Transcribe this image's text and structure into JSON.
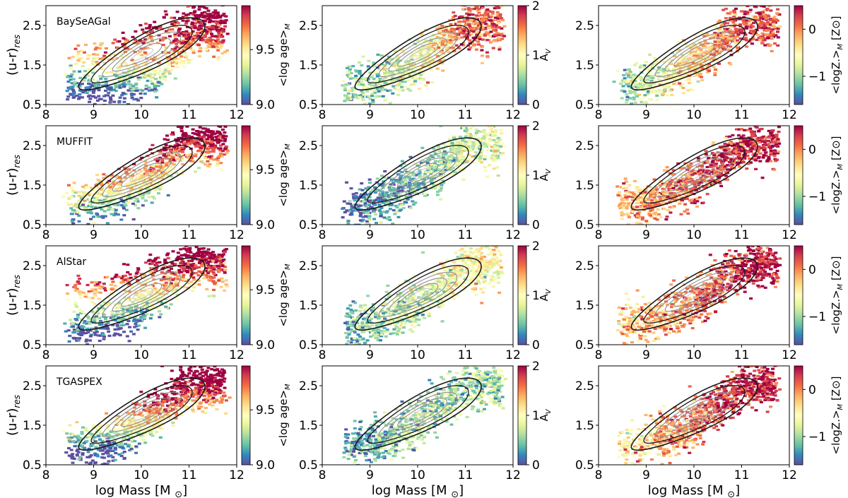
{
  "figure": {
    "x_label": "log Mass [M",
    "x_label_sun": "⊙",
    "x_label_end": "]",
    "y_label_main": "(u-r)",
    "y_label_sub": "res"
  },
  "colorbars": {
    "age": {
      "label": "<log age>",
      "sub": "M",
      "ticks": [
        "9.0",
        "9.5"
      ],
      "range": [
        9.0,
        9.9
      ]
    },
    "av": {
      "label": "A",
      "sub": "V",
      "ticks": [
        "0",
        "1",
        "2"
      ],
      "range": [
        0,
        2
      ]
    },
    "met": {
      "label": "<logZ.>",
      "sub": "M",
      "unit": " [Z⊙]",
      "ticks": [
        "−1",
        "0"
      ],
      "range": [
        -1.6,
        0.5
      ]
    }
  },
  "colors": {
    "spectral": [
      "#5e4fa2",
      "#3288bd",
      "#66c2a5",
      "#abdda4",
      "#e6f598",
      "#ffffbf",
      "#fee08b",
      "#fdae61",
      "#f46d43",
      "#d53e4f",
      "#9e0142"
    ],
    "contour_outer": "#1a1a1a",
    "contour_inner": "#909090"
  },
  "chart_data": [
    {
      "type": "scatter",
      "method": "BaySeAGal",
      "panel": "age",
      "color_quantity": "<log age>_M",
      "xlabel": "",
      "ylabel": "(u-r)_res",
      "xlim": [
        8,
        12
      ],
      "ylim": [
        0.5,
        3.0
      ],
      "x_ticks": [
        "8",
        "9",
        "10",
        "11",
        "12"
      ],
      "y_ticks": [
        "0.5",
        "1.5",
        "2.5"
      ],
      "crange": [
        9.0,
        9.9
      ],
      "grid": false,
      "series": [
        {
          "x": [
            8.6,
            9.0,
            9.4,
            9.8,
            10.2,
            10.5,
            10.8,
            11.1
          ],
          "y": [
            0.85,
            0.9,
            0.95,
            1.05,
            1.25,
            1.5,
            1.9,
            2.3
          ],
          "c": [
            9.02,
            9.05,
            9.1,
            9.2,
            9.35,
            9.5,
            9.7,
            9.85
          ]
        },
        {
          "x": [
            8.7,
            9.2,
            9.6,
            10.0,
            10.3,
            10.6,
            10.9,
            11.2
          ],
          "y": [
            1.7,
            1.75,
            1.9,
            2.1,
            2.35,
            2.55,
            2.65,
            2.7
          ],
          "c": [
            9.55,
            9.6,
            9.7,
            9.78,
            9.82,
            9.86,
            9.88,
            9.9
          ]
        }
      ]
    },
    {
      "type": "scatter",
      "method": "BaySeAGal",
      "panel": "av",
      "color_quantity": "A_V",
      "xlabel": "",
      "ylabel": "",
      "xlim": [
        8,
        12
      ],
      "ylim": [
        0.5,
        3.0
      ],
      "x_ticks": [
        "8",
        "9",
        "10",
        "11",
        "12"
      ],
      "y_ticks": [
        "0.5",
        "1.5",
        "2.5"
      ],
      "crange": [
        0,
        2
      ],
      "grid": false,
      "series": [
        {
          "x": [
            8.6,
            9.0,
            9.4,
            9.8,
            10.2,
            10.6,
            11.0
          ],
          "y": [
            0.95,
            1.05,
            1.2,
            1.4,
            1.7,
            2.1,
            2.5
          ],
          "c": [
            0.5,
            0.6,
            0.7,
            0.8,
            1.0,
            1.3,
            1.7
          ]
        }
      ]
    },
    {
      "type": "scatter",
      "method": "BaySeAGal",
      "panel": "met",
      "color_quantity": "<logZ*>_M [Z_sun]",
      "xlabel": "",
      "ylabel": "",
      "xlim": [
        8,
        12
      ],
      "ylim": [
        0.5,
        3.0
      ],
      "x_ticks": [
        "8",
        "9",
        "10",
        "11",
        "12"
      ],
      "y_ticks": [
        "0.5",
        "1.5",
        "2.5"
      ],
      "crange": [
        -1.6,
        0.5
      ],
      "grid": false,
      "series": [
        {
          "x": [
            8.6,
            9.0,
            9.4,
            9.8,
            10.2,
            10.6,
            11.0
          ],
          "y": [
            1.0,
            1.05,
            1.2,
            1.4,
            1.7,
            2.1,
            2.5
          ],
          "c": [
            -1.0,
            -0.8,
            -0.6,
            -0.4,
            -0.2,
            0.0,
            0.2
          ]
        }
      ]
    },
    {
      "type": "scatter",
      "method": "MUFFIT",
      "panel": "age",
      "color_quantity": "<log age>_M",
      "xlabel": "",
      "ylabel": "(u-r)_res",
      "xlim": [
        8,
        12
      ],
      "ylim": [
        0.5,
        3.0
      ],
      "x_ticks": [
        "8",
        "9",
        "10",
        "11",
        "12"
      ],
      "y_ticks": [
        "0.5",
        "1.5",
        "2.5"
      ],
      "crange": [
        9.0,
        9.9
      ],
      "grid": false,
      "series": [
        {
          "x": [
            8.6,
            9.0,
            9.4,
            9.8,
            10.2,
            10.6,
            11.0
          ],
          "y": [
            1.0,
            1.1,
            1.25,
            1.45,
            1.75,
            2.15,
            2.55
          ],
          "c": [
            9.3,
            9.35,
            9.4,
            9.45,
            9.55,
            9.7,
            9.85
          ]
        }
      ]
    },
    {
      "type": "scatter",
      "method": "MUFFIT",
      "panel": "av",
      "color_quantity": "A_V",
      "xlabel": "",
      "ylabel": "",
      "xlim": [
        8,
        12
      ],
      "ylim": [
        0.5,
        3.0
      ],
      "x_ticks": [
        "8",
        "9",
        "10",
        "11",
        "12"
      ],
      "y_ticks": [
        "0.5",
        "1.5",
        "2.5"
      ],
      "crange": [
        0,
        2
      ],
      "grid": false,
      "series": [
        {
          "x": [
            8.6,
            9.0,
            9.4,
            9.8,
            10.2,
            10.6,
            11.0
          ],
          "y": [
            0.95,
            1.05,
            1.2,
            1.4,
            1.7,
            2.1,
            2.5
          ],
          "c": [
            0.1,
            0.2,
            0.3,
            0.4,
            0.5,
            0.6,
            0.8
          ]
        }
      ]
    },
    {
      "type": "scatter",
      "method": "MUFFIT",
      "panel": "met",
      "color_quantity": "<logZ*>_M [Z_sun]",
      "xlabel": "",
      "ylabel": "",
      "xlim": [
        8,
        12
      ],
      "ylim": [
        0.5,
        3.0
      ],
      "x_ticks": [
        "8",
        "9",
        "10",
        "11",
        "12"
      ],
      "y_ticks": [
        "0.5",
        "1.5",
        "2.5"
      ],
      "crange": [
        -1.6,
        0.5
      ],
      "grid": false,
      "series": [
        {
          "x": [
            8.6,
            9.0,
            9.4,
            9.8,
            10.2,
            10.6,
            11.0
          ],
          "y": [
            1.0,
            1.05,
            1.2,
            1.4,
            1.7,
            2.1,
            2.5
          ],
          "c": [
            -0.2,
            -0.1,
            0.0,
            0.1,
            0.2,
            0.3,
            0.4
          ]
        }
      ]
    },
    {
      "type": "scatter",
      "method": "AlStar",
      "panel": "age",
      "color_quantity": "<log age>_M",
      "xlabel": "",
      "ylabel": "(u-r)_res",
      "xlim": [
        8,
        12
      ],
      "ylim": [
        0.5,
        3.0
      ],
      "x_ticks": [
        "8",
        "9",
        "10",
        "11",
        "12"
      ],
      "y_ticks": [
        "0.5",
        "1.5",
        "2.5"
      ],
      "crange": [
        9.0,
        9.9
      ],
      "grid": false,
      "series": [
        {
          "x": [
            8.6,
            9.0,
            9.4,
            9.8,
            10.2,
            10.6,
            11.0
          ],
          "y": [
            0.9,
            1.0,
            1.15,
            1.35,
            1.65,
            2.05,
            2.45
          ],
          "c": [
            9.05,
            9.1,
            9.15,
            9.25,
            9.4,
            9.65,
            9.85
          ]
        },
        {
          "x": [
            8.8,
            9.2,
            9.6,
            10.0,
            10.4,
            10.8
          ],
          "y": [
            1.8,
            1.95,
            2.15,
            2.35,
            2.55,
            2.7
          ],
          "c": [
            9.6,
            9.7,
            9.75,
            9.8,
            9.85,
            9.9
          ]
        }
      ]
    },
    {
      "type": "scatter",
      "method": "AlStar",
      "panel": "av",
      "color_quantity": "A_V",
      "xlabel": "",
      "ylabel": "",
      "xlim": [
        8,
        12
      ],
      "ylim": [
        0.5,
        3.0
      ],
      "x_ticks": [
        "8",
        "9",
        "10",
        "11",
        "12"
      ],
      "y_ticks": [
        "0.5",
        "1.5",
        "2.5"
      ],
      "crange": [
        0,
        2
      ],
      "grid": false,
      "series": [
        {
          "x": [
            8.6,
            9.0,
            9.4,
            9.8,
            10.2,
            10.6,
            11.0
          ],
          "y": [
            0.95,
            1.05,
            1.2,
            1.4,
            1.7,
            2.1,
            2.5
          ],
          "c": [
            0.4,
            0.5,
            0.6,
            0.7,
            0.8,
            0.9,
            1.0
          ]
        }
      ]
    },
    {
      "type": "scatter",
      "method": "AlStar",
      "panel": "met",
      "color_quantity": "<logZ*>_M [Z_sun]",
      "xlabel": "",
      "ylabel": "",
      "xlim": [
        8,
        12
      ],
      "ylim": [
        0.5,
        3.0
      ],
      "x_ticks": [
        "8",
        "9",
        "10",
        "11",
        "12"
      ],
      "y_ticks": [
        "0.5",
        "1.5",
        "2.5"
      ],
      "crange": [
        -1.6,
        0.5
      ],
      "grid": false,
      "series": [
        {
          "x": [
            8.6,
            9.0,
            9.4,
            9.8,
            10.2,
            10.6,
            11.0
          ],
          "y": [
            1.0,
            1.05,
            1.2,
            1.4,
            1.7,
            2.1,
            2.5
          ],
          "c": [
            -0.3,
            -0.2,
            -0.1,
            0.0,
            0.1,
            0.25,
            0.4
          ]
        }
      ]
    },
    {
      "type": "scatter",
      "method": "TGASPEX",
      "panel": "age",
      "color_quantity": "<log age>_M",
      "xlabel": "log Mass [M_sun]",
      "ylabel": "(u-r)_res",
      "xlim": [
        8,
        12
      ],
      "ylim": [
        0.5,
        3.0
      ],
      "x_ticks": [
        "8",
        "9",
        "10",
        "11",
        "12"
      ],
      "y_ticks": [
        "0.5",
        "1.5",
        "2.5"
      ],
      "crange": [
        9.0,
        9.9
      ],
      "grid": false,
      "series": [
        {
          "x": [
            8.6,
            9.0,
            9.4,
            9.8,
            10.2,
            10.6,
            11.0
          ],
          "y": [
            0.9,
            1.0,
            1.15,
            1.4,
            1.7,
            2.1,
            2.5
          ],
          "c": [
            9.05,
            9.1,
            9.2,
            9.4,
            9.6,
            9.8,
            9.9
          ]
        }
      ]
    },
    {
      "type": "scatter",
      "method": "TGASPEX",
      "panel": "av",
      "color_quantity": "A_V",
      "xlabel": "log Mass [M_sun]",
      "ylabel": "",
      "xlim": [
        8,
        12
      ],
      "ylim": [
        0.5,
        3.0
      ],
      "x_ticks": [
        "8",
        "9",
        "10",
        "11",
        "12"
      ],
      "y_ticks": [
        "0.5",
        "1.5",
        "2.5"
      ],
      "crange": [
        0,
        2
      ],
      "grid": false,
      "series": [
        {
          "x": [
            8.6,
            9.0,
            9.4,
            9.8,
            10.2,
            10.6,
            11.0
          ],
          "y": [
            0.95,
            1.05,
            1.2,
            1.4,
            1.7,
            2.1,
            2.5
          ],
          "c": [
            0.3,
            0.4,
            0.5,
            0.6,
            0.6,
            0.6,
            0.6
          ]
        }
      ]
    },
    {
      "type": "scatter",
      "method": "TGASPEX",
      "panel": "met",
      "color_quantity": "<logZ*>_M [Z_sun]",
      "xlabel": "log Mass [M_sun]",
      "ylabel": "",
      "xlim": [
        8,
        12
      ],
      "ylim": [
        0.5,
        3.0
      ],
      "x_ticks": [
        "8",
        "9",
        "10",
        "11",
        "12"
      ],
      "y_ticks": [
        "0.5",
        "1.5",
        "2.5"
      ],
      "crange": [
        -1.6,
        0.5
      ],
      "grid": false,
      "series": [
        {
          "x": [
            8.6,
            9.0,
            9.4,
            9.8,
            10.2,
            10.6,
            11.0
          ],
          "y": [
            1.0,
            1.05,
            1.2,
            1.4,
            1.7,
            2.1,
            2.5
          ],
          "c": [
            -0.5,
            -0.3,
            -0.1,
            0.0,
            0.1,
            0.25,
            0.4
          ]
        }
      ]
    }
  ]
}
